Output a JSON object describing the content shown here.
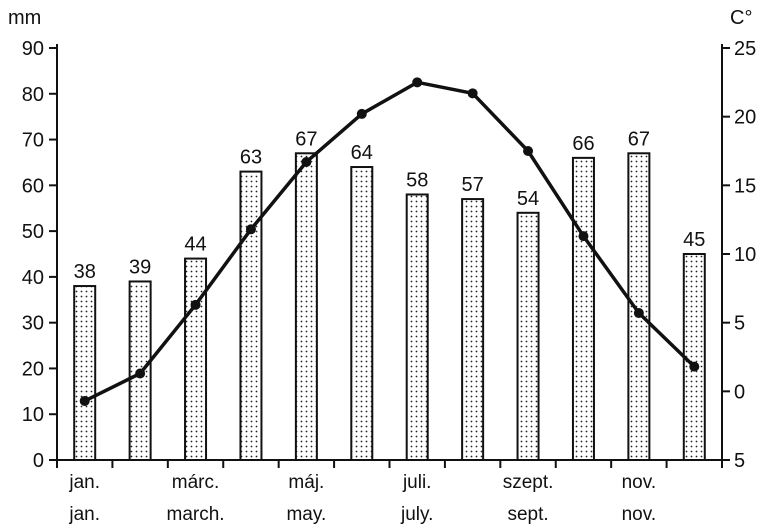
{
  "chart_data": {
    "type": "bar",
    "left_unit": "mm",
    "right_unit": "C°",
    "left_axis": {
      "ylim": [
        0,
        90
      ],
      "ticks": [
        0,
        10,
        20,
        30,
        40,
        50,
        60,
        70,
        80,
        90
      ]
    },
    "right_axis": {
      "ylim": [
        -5,
        25
      ],
      "ticks": [
        -5,
        0,
        5,
        10,
        15,
        20,
        25
      ],
      "tick_labels": [
        "5",
        "0",
        "5",
        "10",
        "15",
        "20",
        "25"
      ]
    },
    "months": [
      {
        "label_hu": "jan.",
        "label_en": "jan."
      },
      {
        "label_hu": "",
        "label_en": ""
      },
      {
        "label_hu": "márc.",
        "label_en": "march."
      },
      {
        "label_hu": "",
        "label_en": ""
      },
      {
        "label_hu": "máj.",
        "label_en": "may."
      },
      {
        "label_hu": "",
        "label_en": ""
      },
      {
        "label_hu": "juli.",
        "label_en": "july."
      },
      {
        "label_hu": "",
        "label_en": ""
      },
      {
        "label_hu": "szept.",
        "label_en": "sept."
      },
      {
        "label_hu": "",
        "label_en": ""
      },
      {
        "label_hu": "nov.",
        "label_en": "nov."
      },
      {
        "label_hu": "",
        "label_en": ""
      }
    ],
    "series": [
      {
        "type": "bar",
        "axis": "left",
        "values": [
          38,
          39,
          44,
          63,
          67,
          64,
          58,
          57,
          54,
          66,
          67,
          45
        ]
      },
      {
        "type": "line",
        "axis": "right",
        "values": [
          -0.7,
          1.3,
          6.3,
          11.8,
          16.7,
          20.2,
          22.5,
          21.7,
          17.5,
          11.3,
          5.7,
          1.8
        ]
      }
    ]
  }
}
